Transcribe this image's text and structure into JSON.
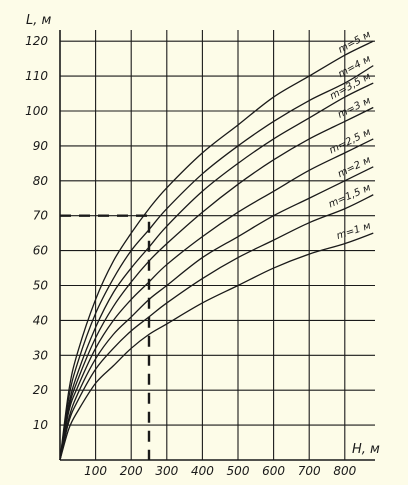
{
  "chart_data": {
    "type": "line",
    "title": "",
    "xlabel": "H, м",
    "ylabel": "L, м",
    "xlim": [
      0,
      900
    ],
    "ylim": [
      0,
      120
    ],
    "x_ticks": [
      100,
      200,
      300,
      400,
      500,
      600,
      700,
      800
    ],
    "y_ticks": [
      10,
      20,
      30,
      40,
      50,
      60,
      70,
      80,
      90,
      100,
      110,
      120
    ],
    "grid": true,
    "line_color": "#1a1a1a",
    "background": "#fdfce8",
    "series": [
      {
        "name": "m=5 м",
        "x": [
          0,
          25,
          50,
          100,
          150,
          200,
          250,
          300,
          400,
          500,
          600,
          700,
          800,
          880
        ],
        "y": [
          0,
          20,
          31,
          46,
          57,
          65,
          72,
          78,
          88,
          96,
          104,
          110,
          116,
          120
        ]
      },
      {
        "name": "m=4 м",
        "x": [
          0,
          25,
          50,
          100,
          150,
          200,
          250,
          300,
          400,
          500,
          600,
          700,
          800,
          880
        ],
        "y": [
          0,
          18,
          28,
          42,
          52,
          60,
          66,
          72,
          82,
          90,
          97,
          103,
          108,
          113
        ]
      },
      {
        "name": "m=3,5 м",
        "x": [
          0,
          25,
          50,
          100,
          150,
          200,
          250,
          300,
          400,
          500,
          600,
          700,
          800,
          880
        ],
        "y": [
          0,
          16,
          25,
          38,
          48,
          55,
          61,
          67,
          77,
          85,
          92,
          98,
          104,
          108
        ]
      },
      {
        "name": "m=3 м",
        "x": [
          0,
          25,
          50,
          100,
          150,
          200,
          250,
          300,
          400,
          500,
          600,
          700,
          800,
          880
        ],
        "y": [
          0,
          15,
          23,
          35,
          44,
          51,
          57,
          62,
          71,
          79,
          86,
          92,
          97,
          101
        ]
      },
      {
        "name": "m=2,5 м",
        "x": [
          0,
          25,
          50,
          100,
          150,
          200,
          250,
          300,
          400,
          500,
          600,
          700,
          800,
          880
        ],
        "y": [
          0,
          14,
          21,
          32,
          40,
          46,
          51,
          56,
          64,
          71,
          77,
          83,
          88,
          92
        ]
      },
      {
        "name": "m=2 м",
        "x": [
          0,
          25,
          50,
          100,
          150,
          200,
          250,
          300,
          400,
          500,
          600,
          700,
          800,
          880
        ],
        "y": [
          0,
          12,
          19,
          29,
          36,
          41,
          46,
          50,
          58,
          64,
          70,
          75,
          80,
          84
        ]
      },
      {
        "name": "m=1,5 м",
        "x": [
          0,
          25,
          50,
          100,
          150,
          200,
          250,
          300,
          400,
          500,
          600,
          700,
          800,
          880
        ],
        "y": [
          0,
          11,
          17,
          26,
          32,
          37,
          41,
          45,
          52,
          58,
          63,
          68,
          72,
          76
        ]
      },
      {
        "name": "m=1 м",
        "x": [
          0,
          25,
          50,
          100,
          150,
          200,
          250,
          300,
          400,
          500,
          600,
          700,
          800,
          880
        ],
        "y": [
          0,
          9,
          14,
          22,
          27,
          32,
          36,
          39,
          45,
          50,
          55,
          59,
          62,
          65
        ]
      }
    ],
    "annotation": {
      "style": "dashed",
      "x": 250,
      "y": 70
    }
  }
}
